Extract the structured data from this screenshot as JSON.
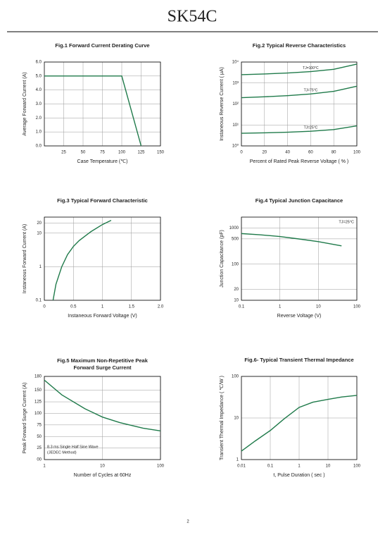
{
  "title": "SK54C",
  "page_number": "2",
  "chart_data": [
    {
      "type": "line",
      "title": "Fig.1  Forward Current Derating Curve",
      "xlabel": "Case Temperature (℃)",
      "ylabel": "Average Forward Current (A)",
      "xlim": [
        0,
        150
      ],
      "xticks": [
        25,
        50,
        75,
        100,
        125,
        150
      ],
      "ylim": [
        0,
        6
      ],
      "yticks": [
        {
          "value": 0,
          "label": "0.0"
        },
        {
          "value": 1,
          "label": "1.0"
        },
        {
          "value": 2,
          "label": "2.0"
        },
        {
          "value": 3,
          "label": "3.0"
        },
        {
          "value": 4,
          "label": "4.0"
        },
        {
          "value": 5,
          "label": "5.0"
        },
        {
          "value": 6,
          "label": "6.0"
        }
      ],
      "grid": true,
      "x": [
        0,
        100,
        125
      ],
      "series": [
        {
          "color": "#1f7a4a",
          "values": [
            5,
            5,
            0
          ]
        }
      ]
    },
    {
      "type": "line",
      "title": "Fig.2  Typical Reverse Characteristics",
      "xlabel": "Percent of Rated Peak Reverse Voltage ( % )",
      "ylabel": "Instaneous Reverse Current ( μA)",
      "xlim": [
        0,
        100
      ],
      "xticks": [
        0,
        20,
        40,
        60,
        80,
        100
      ],
      "yscale": "log",
      "ylim": [
        1,
        10000
      ],
      "yticks": [
        {
          "value": 1,
          "label": "10⁰"
        },
        {
          "value": 10,
          "label": "10¹"
        },
        {
          "value": 100,
          "label": "10²"
        },
        {
          "value": 1000,
          "label": "10³"
        },
        {
          "value": 10000,
          "label": "10⁴"
        }
      ],
      "grid": true,
      "x": [
        0,
        20,
        40,
        60,
        80,
        100
      ],
      "series": [
        {
          "name": "TJ=100°C",
          "color": "#1f7a4a",
          "values": [
            2500,
            2700,
            3000,
            3500,
            4500,
            8000
          ]
        },
        {
          "name": "TJ=75°C",
          "color": "#1f7a4a",
          "values": [
            200,
            220,
            250,
            300,
            400,
            700
          ]
        },
        {
          "name": "TJ=25°C",
          "color": "#1f7a4a",
          "values": [
            4,
            4.2,
            4.5,
            5,
            6,
            9
          ]
        }
      ]
    },
    {
      "type": "line",
      "title": "Fig.3  Typical Forward Characteristic",
      "xlabel": "Instaneous Forward Voltage (V)",
      "ylabel": "Instaneous Forward Current  (A)",
      "xlim": [
        0,
        2
      ],
      "xticks": [
        0,
        0.5,
        1,
        1.5,
        {
          "value": 2,
          "label": "2.0"
        }
      ],
      "yscale": "log",
      "ylim": [
        0.1,
        30
      ],
      "yticks": [
        0.1,
        1,
        10,
        20
      ],
      "grid": true,
      "x": [
        0.15,
        0.2,
        0.3,
        0.4,
        0.5,
        0.6,
        0.8,
        1.0,
        1.15
      ],
      "series": [
        {
          "color": "#1f7a4a",
          "values": [
            0.1,
            0.3,
            1,
            2.3,
            4,
            6,
            11,
            18,
            24
          ]
        }
      ]
    },
    {
      "type": "line",
      "title": "Fig.4  Typical Junction Capacitance",
      "xlabel": "Reverse  Voltage (V)",
      "ylabel": "Junction Capacitance (pF)",
      "xscale": "log",
      "xlim": [
        0.1,
        100
      ],
      "xticks": [
        0.1,
        1,
        10,
        100
      ],
      "yscale": "log",
      "ylim": [
        10,
        2000
      ],
      "yticks": [
        10,
        20,
        100,
        500,
        1000
      ],
      "grid": true,
      "annotations": [
        "TJ=25°C"
      ],
      "x": [
        0.1,
        0.3,
        1,
        3,
        10,
        40
      ],
      "series": [
        {
          "color": "#1f7a4a",
          "values": [
            700,
            650,
            580,
            500,
            420,
            320
          ]
        }
      ]
    },
    {
      "type": "line",
      "title": [
        "Fig.5  Maximum Non-Repetitive Peak",
        "Forward Surge Current"
      ],
      "xlabel": "Number of Cycles at 60Hz",
      "ylabel": "Peak Forward Surge Current (A)",
      "xscale": "log",
      "xlim": [
        1,
        100
      ],
      "xticks": [
        1,
        10,
        100
      ],
      "ylim": [
        0,
        180
      ],
      "yticks": [
        {
          "value": 0,
          "label": "00"
        },
        25,
        50,
        75,
        100,
        125,
        150,
        180
      ],
      "grid": true,
      "annotations": [
        "8.3 ms Single Half Sine Wave",
        "(JEDEC Method)"
      ],
      "x": [
        1,
        2,
        5,
        10,
        20,
        50,
        100
      ],
      "series": [
        {
          "color": "#1f7a4a",
          "values": [
            172,
            140,
            110,
            92,
            80,
            68,
            62
          ]
        }
      ]
    },
    {
      "type": "line",
      "title": "Fig.6- Typical Transient Thermal Impedance",
      "xlabel": "t, Pulse Duration ( sec )",
      "ylabel": "Transient Thermal Impedance ( ℃/W )",
      "xscale": "log",
      "xlim": [
        0.01,
        100
      ],
      "xticks": [
        0.01,
        0.1,
        1,
        10,
        100
      ],
      "yscale": "log",
      "ylim": [
        1,
        100
      ],
      "yticks": [
        1,
        10,
        100
      ],
      "grid": true,
      "x": [
        0.01,
        0.03,
        0.1,
        0.3,
        1,
        3,
        10,
        30,
        100
      ],
      "series": [
        {
          "color": "#1f7a4a",
          "values": [
            1.6,
            2.8,
            5,
            9.5,
            18,
            24,
            28,
            32,
            35
          ]
        }
      ]
    }
  ]
}
